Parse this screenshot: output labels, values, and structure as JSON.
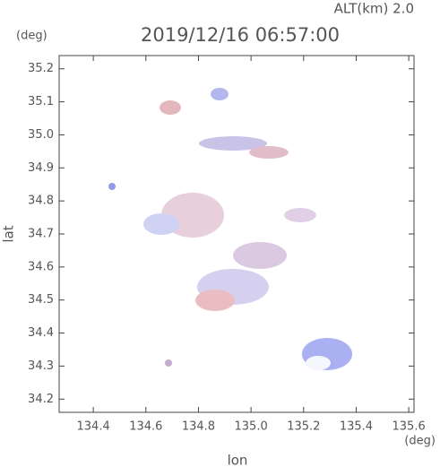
{
  "chart_data": {
    "type": "map",
    "title": "2019/12/16 06:57:00",
    "subtitle": "ALT(km)  2.0",
    "x_label": "lon",
    "y_label": "lat",
    "x_unit": "(deg)",
    "y_unit": "(deg)",
    "xlim": [
      134.27,
      135.62
    ],
    "ylim": [
      34.16,
      35.24
    ],
    "xticks": [
      134.4,
      134.6,
      134.8,
      {
        "value": 135,
        "label": "135.0"
      },
      135.2,
      135.4,
      135.6
    ],
    "yticks": [
      34.2,
      34.3,
      34.4,
      34.5,
      34.6,
      34.7,
      34.8,
      34.9,
      {
        "value": 35,
        "label": "35.0"
      },
      35.1,
      35.2
    ]
  }
}
